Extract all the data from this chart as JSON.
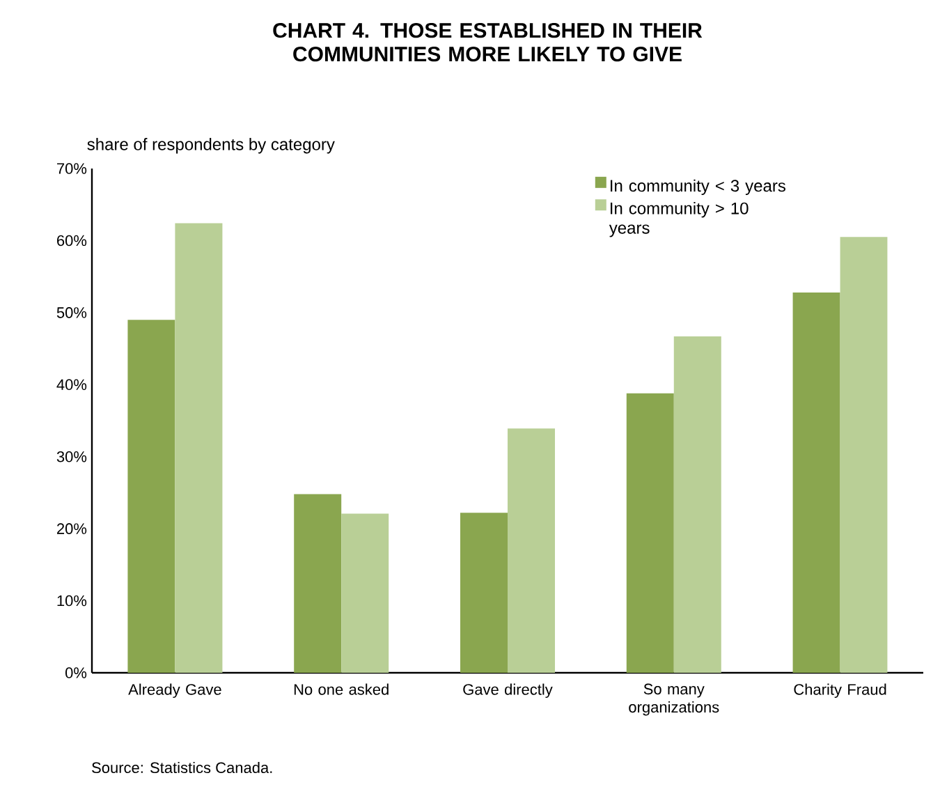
{
  "chart_data": {
    "type": "bar",
    "title": "CHART 4. THOSE ESTABLISHED IN THEIR COMMUNITIES MORE LIKELY TO GIVE",
    "ylabel": "share of respondents by category",
    "categories": [
      "Already Gave",
      "No one asked",
      "Gave directly",
      "So many organizations",
      "Charity Fraud"
    ],
    "series": [
      {
        "name": "In community < 3 years",
        "color": "#8aa64f",
        "values": [
          49.0,
          24.8,
          22.2,
          38.8,
          52.8
        ]
      },
      {
        "name": "In community > 10 years",
        "color": "#b9cf96",
        "values": [
          62.4,
          22.1,
          33.9,
          46.7,
          60.5
        ]
      }
    ],
    "ylim": [
      0,
      70
    ],
    "yticks": [
      {
        "value": 0,
        "label": "0%"
      },
      {
        "value": 10,
        "label": "10%"
      },
      {
        "value": 20,
        "label": "20%"
      },
      {
        "value": 30,
        "label": "30%"
      },
      {
        "value": 40,
        "label": "40%"
      },
      {
        "value": 50,
        "label": "50%"
      },
      {
        "value": 60,
        "label": "60%"
      },
      {
        "value": 70,
        "label": "70%"
      }
    ],
    "legend": "top right",
    "grid": false,
    "annotations": [
      "Source: Statistics Canada."
    ]
  }
}
